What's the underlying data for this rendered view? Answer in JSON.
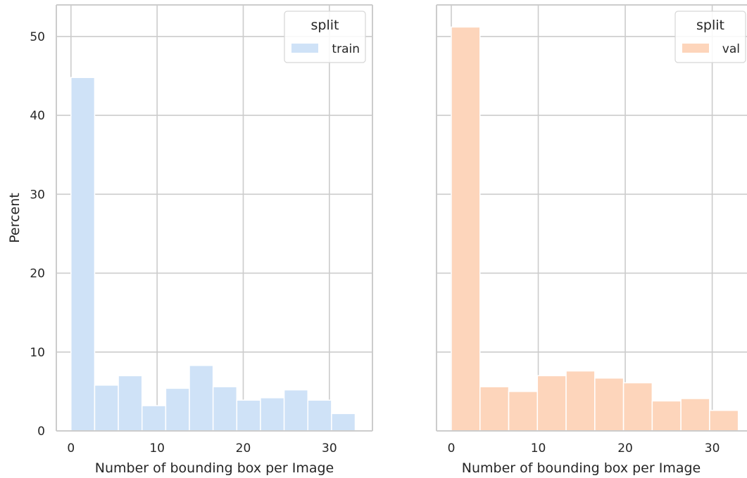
{
  "chart_data": [
    {
      "type": "bar",
      "panel": "left",
      "xlabel": "Number of bounding box per Image",
      "ylabel": "Percent",
      "xlim": [
        -1.7,
        35
      ],
      "ylim": [
        0,
        54
      ],
      "xticks": [
        0,
        10,
        20,
        30
      ],
      "yticks": [
        0,
        10,
        20,
        30,
        40,
        50
      ],
      "grid": true,
      "legend": {
        "title": "split",
        "placement": "top-right",
        "entries": [
          {
            "label": "train",
            "color": "#cfe2f7"
          }
        ]
      },
      "bins": [
        {
          "x0": 0.0,
          "x1": 2.75,
          "value": 44.8
        },
        {
          "x0": 2.75,
          "x1": 5.5,
          "value": 5.8
        },
        {
          "x0": 5.5,
          "x1": 8.25,
          "value": 7.0
        },
        {
          "x0": 8.25,
          "x1": 11.0,
          "value": 3.2
        },
        {
          "x0": 11.0,
          "x1": 13.75,
          "value": 5.4
        },
        {
          "x0": 13.75,
          "x1": 16.5,
          "value": 8.3
        },
        {
          "x0": 16.5,
          "x1": 19.25,
          "value": 5.6
        },
        {
          "x0": 19.25,
          "x1": 22.0,
          "value": 3.9
        },
        {
          "x0": 22.0,
          "x1": 24.75,
          "value": 4.2
        },
        {
          "x0": 24.75,
          "x1": 27.5,
          "value": 5.2
        },
        {
          "x0": 27.5,
          "x1": 30.25,
          "value": 3.9
        },
        {
          "x0": 30.25,
          "x1": 33.0,
          "value": 2.2
        }
      ]
    },
    {
      "type": "bar",
      "panel": "right",
      "xlabel": "Number of bounding box per Image",
      "ylabel": "",
      "xlim": [
        -1.7,
        34
      ],
      "ylim": [
        0,
        54
      ],
      "xticks": [
        0,
        10,
        20,
        30
      ],
      "yticks": [
        0,
        10,
        20,
        30,
        40,
        50
      ],
      "grid": true,
      "legend": {
        "title": "split",
        "placement": "top-right",
        "entries": [
          {
            "label": "val",
            "color": "#fdd5bb"
          }
        ]
      },
      "bins": [
        {
          "x0": 0.0,
          "x1": 3.3,
          "value": 51.2
        },
        {
          "x0": 3.3,
          "x1": 6.6,
          "value": 5.6
        },
        {
          "x0": 6.6,
          "x1": 9.9,
          "value": 5.0
        },
        {
          "x0": 9.9,
          "x1": 13.2,
          "value": 7.0
        },
        {
          "x0": 13.2,
          "x1": 16.5,
          "value": 7.6
        },
        {
          "x0": 16.5,
          "x1": 19.8,
          "value": 6.7
        },
        {
          "x0": 19.8,
          "x1": 23.1,
          "value": 6.1
        },
        {
          "x0": 23.1,
          "x1": 26.4,
          "value": 3.8
        },
        {
          "x0": 26.4,
          "x1": 29.7,
          "value": 4.1
        },
        {
          "x0": 29.7,
          "x1": 33.0,
          "value": 2.6
        }
      ]
    }
  ]
}
